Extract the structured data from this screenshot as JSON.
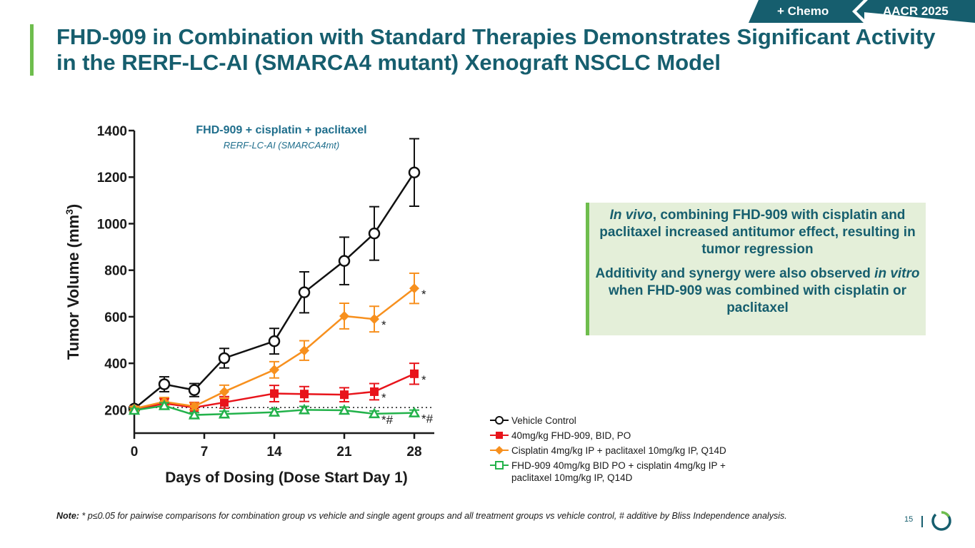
{
  "header": {
    "tag_left": "+ Chemo",
    "tag_right": "AACR 2025",
    "title": "FHD-909 in Combination with Standard Therapies Demonstrates Significant Activity in the RERF-LC-AI (SMARCA4 mutant) Xenograft NSCLC Model"
  },
  "colors": {
    "brand": "#165e6e",
    "accent_green": "#6ebd4d",
    "vehicle": "#111111",
    "fhd909": "#e8141b",
    "chemo": "#f7901e",
    "combo": "#23b24b"
  },
  "chart_data": {
    "type": "line",
    "title": "FHD-909 + cisplatin + paclitaxel",
    "subtitle": "RERF-LC-AI (SMARCA4mt)",
    "xlabel": "Days of Dosing (Dose Start Day 1)",
    "ylabel_main": "Tumor Volume (mm",
    "ylabel_sup": "3",
    "ylabel_close": ")",
    "xlim": [
      0,
      30
    ],
    "ylim": [
      100,
      1400
    ],
    "x_ticks": [
      0,
      7,
      14,
      21,
      28
    ],
    "y_ticks": [
      200,
      400,
      600,
      800,
      1000,
      1200,
      1400
    ],
    "baseline": 210,
    "series": [
      {
        "name": "Vehicle Control",
        "color": "#111111",
        "marker": "open-circle",
        "x": [
          0,
          3,
          6,
          9,
          14,
          17,
          21,
          24,
          28
        ],
        "y": [
          205,
          310,
          285,
          422,
          495,
          705,
          840,
          958,
          1220
        ],
        "err": [
          12,
          32,
          28,
          42,
          55,
          88,
          102,
          115,
          145
        ],
        "annotations": []
      },
      {
        "name": "40mg/kg FHD-909, BID, PO",
        "color": "#e8141b",
        "marker": "square",
        "x": [
          0,
          3,
          6,
          9,
          14,
          17,
          21,
          24,
          28
        ],
        "y": [
          200,
          228,
          210,
          232,
          270,
          268,
          265,
          278,
          355
        ],
        "err": [
          10,
          20,
          22,
          25,
          35,
          32,
          30,
          35,
          45
        ],
        "annotations": [
          {
            "x": 24,
            "y": 278,
            "text": "*"
          },
          {
            "x": 28,
            "y": 355,
            "text": "*"
          }
        ]
      },
      {
        "name": "Cisplatin 4mg/kg IP + paclitaxel 10mg/kg IP, Q14D",
        "color": "#f7901e",
        "marker": "diamond",
        "x": [
          0,
          3,
          6,
          9,
          14,
          17,
          21,
          24,
          28
        ],
        "y": [
          205,
          235,
          215,
          278,
          372,
          455,
          603,
          590,
          722
        ],
        "err": [
          10,
          18,
          15,
          28,
          35,
          42,
          55,
          55,
          65
        ],
        "annotations": [
          {
            "x": 24,
            "y": 590,
            "text": "*"
          },
          {
            "x": 28,
            "y": 722,
            "text": "*"
          }
        ]
      },
      {
        "name": "FHD-909 40mg/kg BID PO + cisplatin 4mg/kg IP + paclitaxel 10mg/kg IP, Q14D",
        "color": "#23b24b",
        "marker": "open-square",
        "x": [
          0,
          3,
          6,
          9,
          14,
          17,
          21,
          24,
          28
        ],
        "y": [
          198,
          218,
          178,
          182,
          190,
          200,
          198,
          183,
          187
        ],
        "err": [
          8,
          12,
          10,
          12,
          14,
          15,
          14,
          12,
          12
        ],
        "annotations": [
          {
            "x": 24,
            "y": 183,
            "text": "*#"
          },
          {
            "x": 28,
            "y": 187,
            "text": "*#"
          }
        ]
      }
    ],
    "legend_position": "bottom-right"
  },
  "legend": {
    "items": [
      {
        "label": "Vehicle Control"
      },
      {
        "label": "40mg/kg FHD-909, BID, PO"
      },
      {
        "label": "Cisplatin 4mg/kg IP + paclitaxel 10mg/kg IP, Q14D"
      },
      {
        "label_line1": "FHD-909 40mg/kg BID PO + cisplatin 4mg/kg IP +",
        "label_line2": "paclitaxel 10mg/kg IP, Q14D"
      }
    ]
  },
  "callout": {
    "p1_em": "In vivo",
    "p1_rest": ", combining FHD-909 with cisplatin and paclitaxel increased antitumor effect, resulting in tumor regression",
    "p2_a": "Additivity and synergy were also observed ",
    "p2_em": "in vitro",
    "p2_b": " when FHD-909 was combined with cisplatin or paclitaxel"
  },
  "footer": {
    "note_label": "Note:",
    "note_text": " * p≤0.05 for pairwise comparisons for combination group vs vehicle and single agent groups and all treatment groups vs vehicle control, # additive by Bliss Independence analysis.",
    "page_number": "15"
  }
}
